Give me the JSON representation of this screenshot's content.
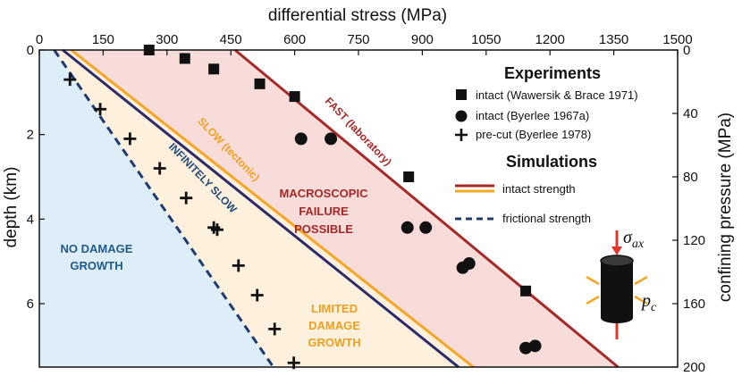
{
  "chart_data": {
    "type": "scatter",
    "top_axis": {
      "label": "differential stress (MPa)",
      "range": [
        0,
        1500
      ],
      "ticks": [
        "0",
        "150",
        "300",
        "450",
        "600",
        "750",
        "900",
        "1050",
        "1200",
        "1350",
        "1500"
      ]
    },
    "left_axis": {
      "label": "depth (km)",
      "range": [
        0,
        7.5
      ],
      "ticks": [
        "0",
        "2",
        "4",
        "6"
      ]
    },
    "right_axis": {
      "label": "confining pressure (MPa)",
      "range": [
        0,
        200
      ],
      "ticks": [
        "0",
        "40",
        "80",
        "120",
        "160",
        "200"
      ]
    },
    "legend": {
      "experiments_title": "Experiments",
      "simulations_title": "Simulations",
      "entries": [
        {
          "marker": "square",
          "label": "intact (Wawersik & Brace 1971)"
        },
        {
          "marker": "circle",
          "label": "intact (Byerlee 1967a)"
        },
        {
          "marker": "plus",
          "label": "pre-cut (Byerlee 1978)"
        },
        {
          "marker": "double-line",
          "label": "intact strength"
        },
        {
          "marker": "dashed-line",
          "label": "frictional strength"
        }
      ]
    },
    "lines": [
      {
        "key": "frictional",
        "label": "",
        "color": "#1f3a6e",
        "dash": true,
        "x": [
          35,
          550
        ],
        "y": [
          0,
          7.5
        ]
      },
      {
        "key": "infinitely_slow",
        "label": "INFINITELY SLOW",
        "color": "#2b2a6b",
        "dash": false,
        "x": [
          55,
          985
        ],
        "y": [
          0,
          7.5
        ]
      },
      {
        "key": "slow",
        "label": "SLOW (tectonic)",
        "color": "#f5a623",
        "dash": false,
        "x": [
          75,
          1020
        ],
        "y": [
          0,
          7.5
        ]
      },
      {
        "key": "fast",
        "label": "FAST (laboratory)",
        "color": "#a82828",
        "dash": false,
        "x": [
          460,
          1360
        ],
        "y": [
          0,
          7.5
        ]
      }
    ],
    "series": [
      {
        "name": "intact (Wawersik & Brace 1971)",
        "marker": "square",
        "x": [
          258,
          342,
          410,
          518,
          600,
          868,
          1143
        ],
        "y": [
          0.0,
          0.2,
          0.45,
          0.8,
          1.1,
          3.0,
          5.7
        ]
      },
      {
        "name": "intact (Byerlee 1967a)",
        "marker": "circle",
        "x": [
          615,
          685,
          865,
          908,
          995,
          1010,
          1143,
          1165
        ],
        "y": [
          2.1,
          2.1,
          4.2,
          4.2,
          5.15,
          5.05,
          7.05,
          7.0
        ]
      },
      {
        "name": "pre-cut (Byerlee 1978)",
        "marker": "plus",
        "x": [
          72,
          143,
          213,
          283,
          345,
          410,
          418,
          468,
          512,
          553,
          598
        ],
        "y": [
          0.7,
          1.4,
          2.1,
          2.8,
          3.5,
          4.2,
          4.25,
          5.1,
          5.8,
          6.6,
          7.4
        ]
      }
    ],
    "regions": [
      {
        "key": "no_damage",
        "label": "NO DAMAGE GROWTH",
        "color": "#ddeef8"
      },
      {
        "key": "limited",
        "label": "LIMITED DAMAGE GROWTH",
        "color": "#fdf0dc"
      },
      {
        "key": "failure",
        "label": "MACROSCOPIC FAILURE POSSIBLE",
        "color": "#f8dcd9"
      }
    ],
    "inset": {
      "sigma_label": "σ",
      "sigma_sub": "ax",
      "p_label": "p",
      "p_sub": "c"
    },
    "grid": false
  }
}
